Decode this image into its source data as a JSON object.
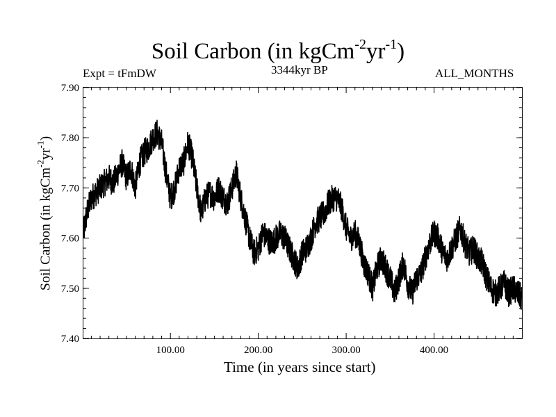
{
  "chart_data": {
    "type": "line",
    "title": "Soil Carbon (in kgCm",
    "title_units": {
      "exp1": "-2",
      "mid": "yr",
      "exp2": "-1",
      "close": ")"
    },
    "expt_label": "Expt = tFmDW",
    "subtitle": "3344kyr BP",
    "months_label": "ALL_MONTHS",
    "xlabel": "Time (in years since start)",
    "ylabel": "Soil Carbon (in kgCm",
    "ylabel_units": {
      "exp1": "-2",
      "mid": "yr",
      "exp2": "-1",
      "close": ")"
    },
    "xlim": [
      1,
      500
    ],
    "ylim": [
      7.4,
      7.9
    ],
    "x_ticks": [
      100,
      200,
      300,
      400
    ],
    "x_tick_labels": [
      "100.00",
      "200.00",
      "300.00",
      "400.00"
    ],
    "y_ticks": [
      7.4,
      7.5,
      7.6,
      7.7,
      7.8,
      7.9
    ],
    "y_tick_labels": [
      "7.40",
      "7.50",
      "7.60",
      "7.70",
      "7.80",
      "7.90"
    ],
    "line_color": "#000000",
    "series": [
      {
        "name": "Soil Carbon",
        "x": [
          1,
          5,
          10,
          15,
          20,
          25,
          30,
          35,
          40,
          45,
          50,
          55,
          60,
          65,
          70,
          75,
          80,
          85,
          90,
          95,
          100,
          105,
          110,
          115,
          120,
          125,
          130,
          135,
          140,
          145,
          150,
          155,
          160,
          165,
          170,
          175,
          180,
          185,
          190,
          195,
          200,
          205,
          210,
          215,
          220,
          225,
          230,
          235,
          240,
          245,
          250,
          255,
          260,
          265,
          270,
          275,
          280,
          285,
          290,
          295,
          300,
          305,
          310,
          315,
          320,
          325,
          330,
          335,
          340,
          345,
          350,
          355,
          360,
          365,
          370,
          375,
          380,
          385,
          390,
          395,
          400,
          405,
          410,
          415,
          420,
          425,
          430,
          435,
          440,
          445,
          450,
          455,
          460,
          465,
          470,
          475,
          480,
          485,
          490,
          495,
          500
        ],
        "values": [
          7.61,
          7.65,
          7.68,
          7.69,
          7.7,
          7.71,
          7.72,
          7.71,
          7.73,
          7.75,
          7.72,
          7.74,
          7.7,
          7.75,
          7.77,
          7.78,
          7.8,
          7.81,
          7.79,
          7.73,
          7.68,
          7.7,
          7.74,
          7.75,
          7.79,
          7.76,
          7.7,
          7.65,
          7.68,
          7.69,
          7.68,
          7.7,
          7.68,
          7.67,
          7.7,
          7.73,
          7.68,
          7.64,
          7.6,
          7.57,
          7.58,
          7.61,
          7.6,
          7.59,
          7.6,
          7.61,
          7.6,
          7.58,
          7.56,
          7.54,
          7.57,
          7.58,
          7.6,
          7.63,
          7.64,
          7.65,
          7.67,
          7.68,
          7.68,
          7.66,
          7.62,
          7.6,
          7.61,
          7.59,
          7.55,
          7.53,
          7.5,
          7.54,
          7.56,
          7.54,
          7.52,
          7.49,
          7.52,
          7.55,
          7.51,
          7.49,
          7.52,
          7.53,
          7.56,
          7.59,
          7.61,
          7.6,
          7.57,
          7.56,
          7.58,
          7.6,
          7.62,
          7.59,
          7.57,
          7.58,
          7.56,
          7.55,
          7.52,
          7.5,
          7.49,
          7.5,
          7.51,
          7.49,
          7.5,
          7.49,
          7.48
        ]
      }
    ]
  }
}
